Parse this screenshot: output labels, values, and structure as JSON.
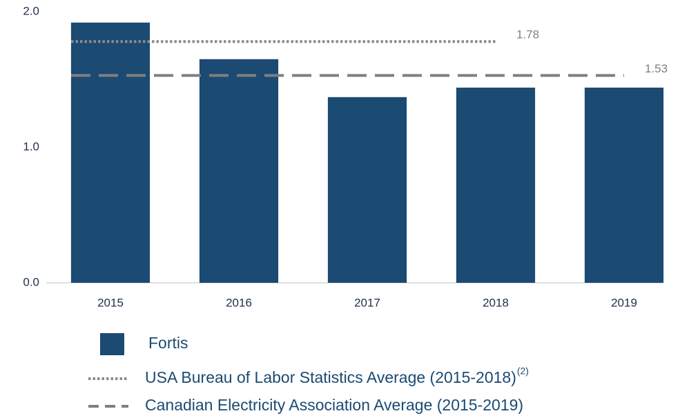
{
  "chart_data": {
    "type": "bar",
    "categories": [
      "2015",
      "2016",
      "2017",
      "2018",
      "2019"
    ],
    "values": [
      1.92,
      1.65,
      1.37,
      1.44,
      1.44
    ],
    "name": "Fortis",
    "color": "#1b4a72",
    "ylim": [
      0,
      2
    ],
    "yticks": [
      {
        "value": 0,
        "label": "0.0"
      },
      {
        "value": 1,
        "label": "1.0"
      },
      {
        "value": 2,
        "label": "2.0"
      }
    ],
    "series": [
      {
        "name": "USA Bureau of Labor Statistics Average (2015-2018)",
        "note": "(2)",
        "color": "#8c8c8c",
        "style": "dotted",
        "values": [
          1.78,
          1.78,
          1.78,
          1.78,
          null
        ]
      },
      {
        "name": "Canadian Electricity Association Average (2015-2019)",
        "color": "#7f7f7f",
        "style": "dashed",
        "values": [
          1.53,
          1.53,
          1.53,
          1.53,
          1.53
        ]
      }
    ]
  }
}
